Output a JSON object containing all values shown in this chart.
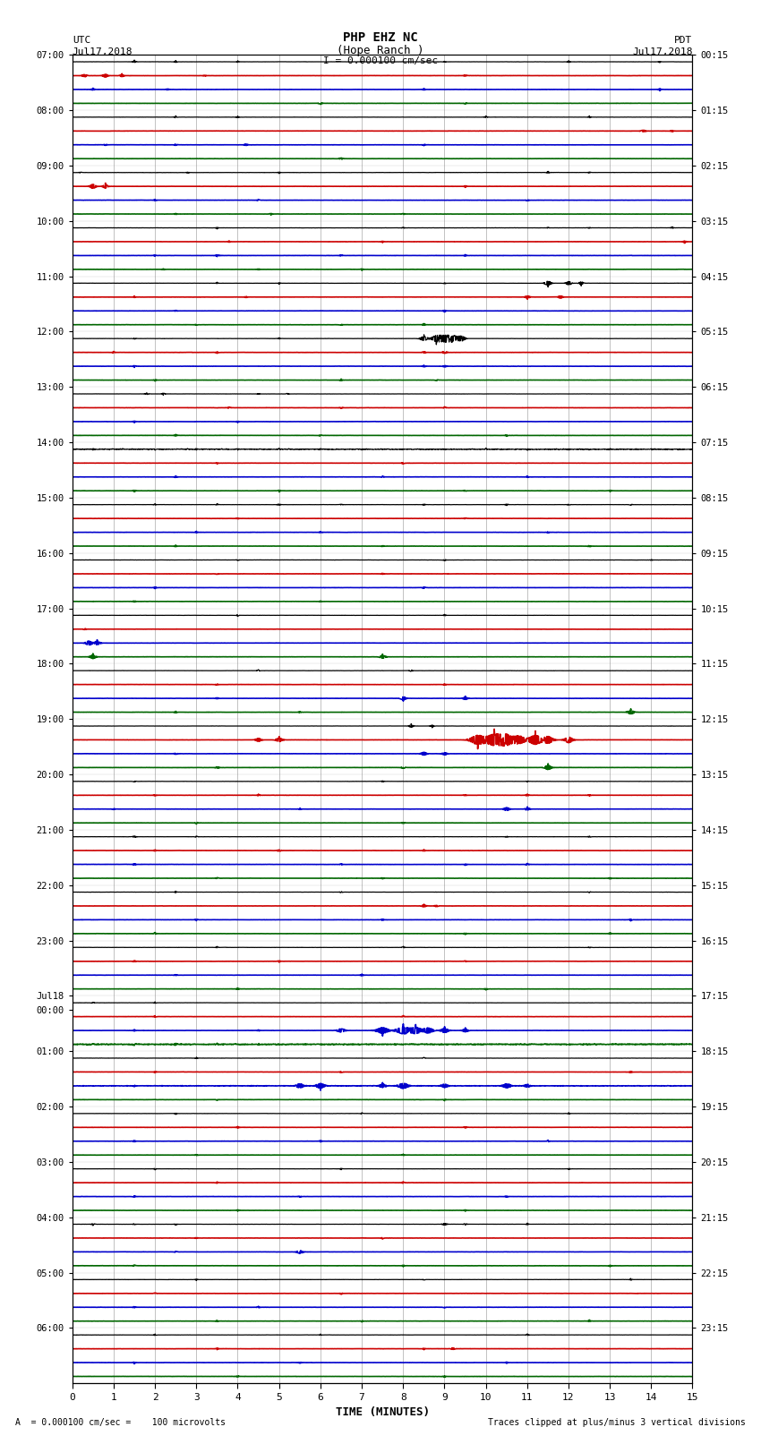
{
  "title_line1": "PHP EHZ NC",
  "title_line2": "(Hope Ranch )",
  "scale_text": "I = 0.000100 cm/sec",
  "utc_label": "UTC",
  "utc_date": "Jul17,2018",
  "pdt_label": "PDT",
  "pdt_date": "Jul17,2018",
  "xlabel": "TIME (MINUTES)",
  "footer_left": "A  = 0.000100 cm/sec =    100 microvolts",
  "footer_right": "Traces clipped at plus/minus 3 vertical divisions",
  "xmin": 0,
  "xmax": 15,
  "trace_colors": [
    "#000000",
    "#cc0000",
    "#0000cc",
    "#006600"
  ],
  "utc_labels": [
    "07:00",
    "08:00",
    "09:00",
    "10:00",
    "11:00",
    "12:00",
    "13:00",
    "14:00",
    "15:00",
    "16:00",
    "17:00",
    "18:00",
    "19:00",
    "20:00",
    "21:00",
    "22:00",
    "23:00",
    "Jul18",
    "00:00",
    "01:00",
    "02:00",
    "03:00",
    "04:00",
    "05:00",
    "06:00"
  ],
  "utc_label_rows": [
    0,
    4,
    8,
    12,
    16,
    20,
    24,
    28,
    32,
    36,
    40,
    44,
    48,
    52,
    56,
    60,
    64,
    68,
    69,
    72,
    76,
    80,
    84,
    88,
    92
  ],
  "pdt_labels": [
    "00:15",
    "01:15",
    "02:15",
    "03:15",
    "04:15",
    "05:15",
    "06:15",
    "07:15",
    "08:15",
    "09:15",
    "10:15",
    "11:15",
    "12:15",
    "13:15",
    "14:15",
    "15:15",
    "16:15",
    "17:15",
    "18:15",
    "19:15",
    "20:15",
    "21:15",
    "22:15",
    "23:15"
  ],
  "pdt_label_rows": [
    0,
    4,
    8,
    12,
    16,
    20,
    24,
    28,
    32,
    36,
    40,
    44,
    48,
    52,
    56,
    60,
    64,
    68,
    72,
    76,
    80,
    84,
    88,
    92
  ],
  "background_color": "#ffffff",
  "grid_color": "#999999",
  "n_traces": 96,
  "traces_per_hour": 4
}
